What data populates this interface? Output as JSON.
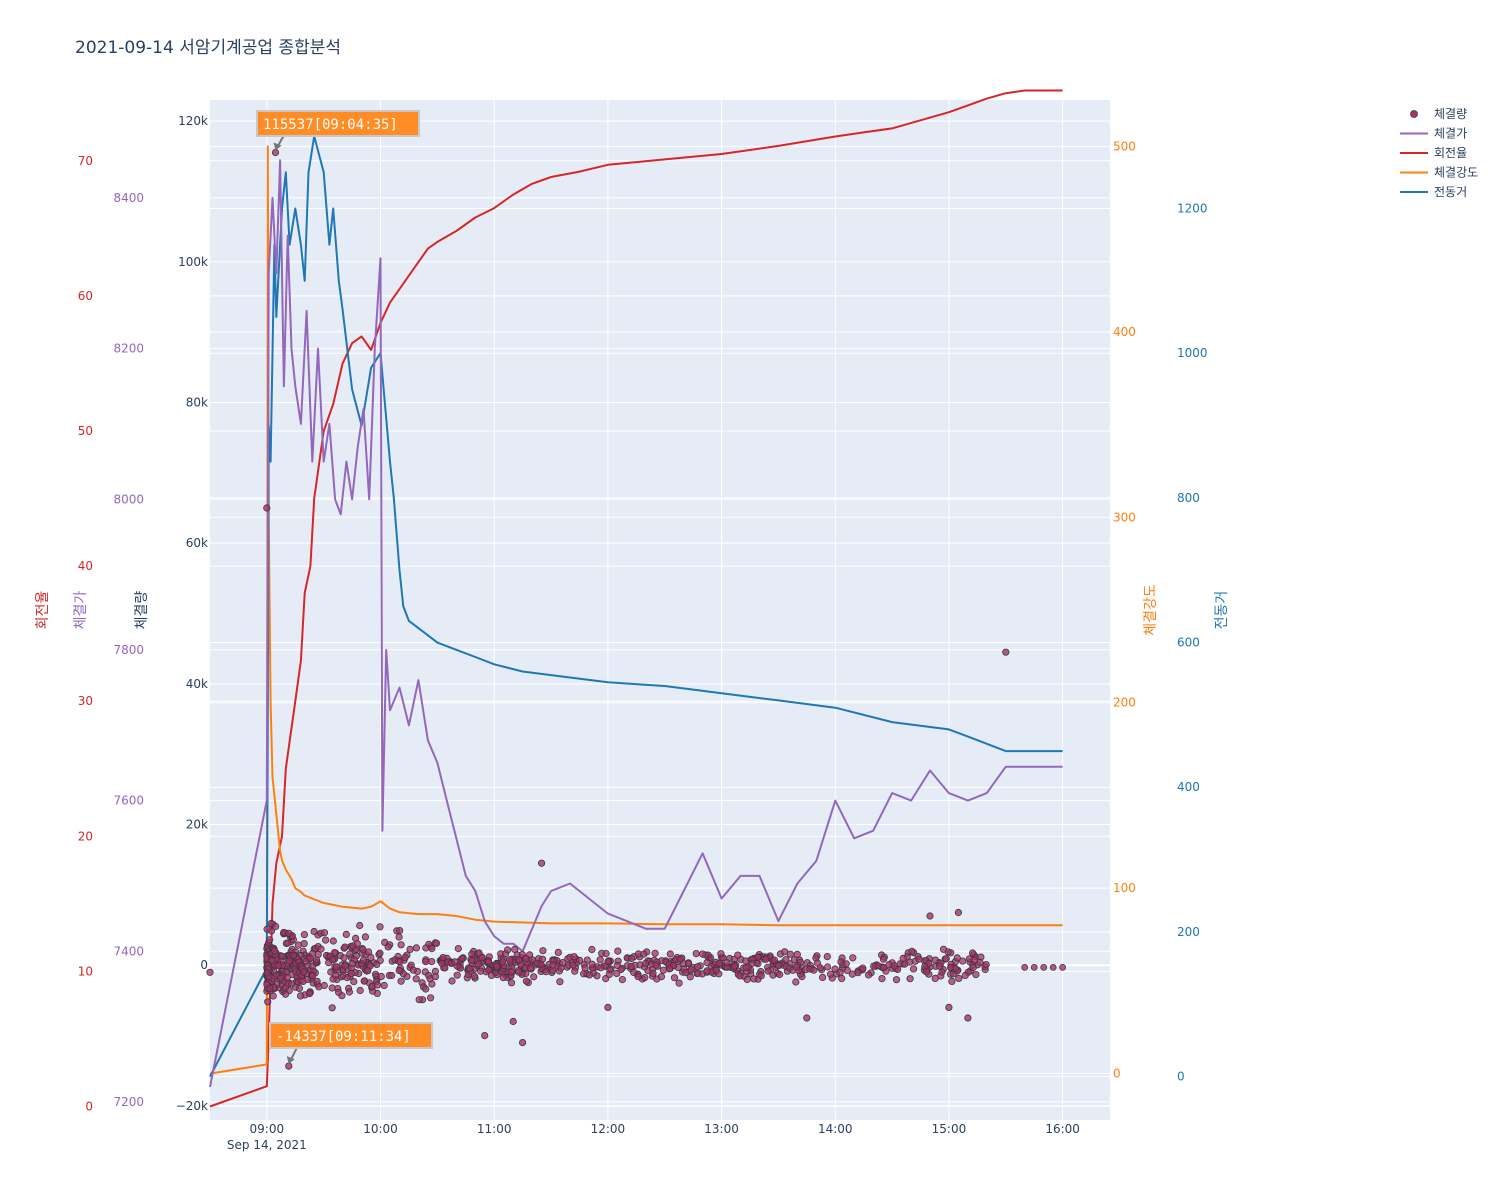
{
  "chart_data": {
    "type": "line",
    "title": "2021-09-14 서암기계공업 종합분석",
    "x_axis": {
      "type": "time",
      "range": [
        "2021-09-14 08:30",
        "2021-09-14 16:25"
      ],
      "tick_labels": [
        "09:00",
        "10:00",
        "11:00",
        "12:00",
        "13:00",
        "14:00",
        "15:00",
        "16:00"
      ],
      "date_label": "Sep 14, 2021",
      "grid": true
    },
    "y_axes": {
      "volume": {
        "label": "체결량",
        "ticks": [
          "−20k",
          "0",
          "20k",
          "40k",
          "60k",
          "80k",
          "100k",
          "120k"
        ],
        "range": [
          -22000,
          123000
        ],
        "color": "#2a3f5f"
      },
      "price": {
        "label": "체결가",
        "ticks": [
          "7200",
          "7400",
          "7600",
          "7800",
          "8000",
          "8200",
          "8400"
        ],
        "range": [
          7176,
          8530
        ],
        "color": "#9467bd"
      },
      "turnover": {
        "label": "회전율",
        "ticks": [
          "0",
          "10",
          "20",
          "30",
          "40",
          "50",
          "60",
          "70"
        ],
        "range": [
          -1,
          74.5
        ],
        "color": "#d62728"
      },
      "strength": {
        "label": "체결강도",
        "ticks": [
          "0",
          "100",
          "200",
          "300",
          "400",
          "500"
        ],
        "range": [
          -25,
          525
        ],
        "color": "#ff7f0e"
      },
      "momentum": {
        "label": "전동거",
        "ticks": [
          "0",
          "200",
          "400",
          "600",
          "800",
          "1000",
          "1200"
        ],
        "range": [
          -60,
          1350
        ],
        "color": "#1f77b4"
      }
    },
    "legend": {
      "position": "top-right",
      "entries": [
        {
          "name": "체결량",
          "kind": "marker",
          "color": "#a8306b"
        },
        {
          "name": "체결가",
          "kind": "line",
          "color": "#9467bd"
        },
        {
          "name": "회전율",
          "kind": "line",
          "color": "#d62728"
        },
        {
          "name": "체결강도",
          "kind": "line",
          "color": "#ff7f0e"
        },
        {
          "name": "전동거",
          "kind": "line",
          "color": "#1f77b4"
        }
      ]
    },
    "annotations": [
      {
        "text": "115537[09:04:35]",
        "x": "09:04:35",
        "y": 115537,
        "axis": "volume"
      },
      {
        "text": "-14337[09:11:34]",
        "x": "09:11:34",
        "y": -14337,
        "axis": "volume"
      }
    ],
    "series": [
      {
        "name": "회전율",
        "axis": "turnover",
        "color": "#d62728",
        "x": [
          "08:30",
          "09:00",
          "09:01",
          "09:02",
          "09:03",
          "09:05",
          "09:08",
          "09:10",
          "09:13",
          "09:15",
          "09:18",
          "09:20",
          "09:23",
          "09:25",
          "09:30",
          "09:35",
          "09:40",
          "09:45",
          "09:50",
          "09:55",
          "10:00",
          "10:05",
          "10:10",
          "10:15",
          "10:20",
          "10:25",
          "10:30",
          "10:40",
          "10:50",
          "11:00",
          "11:10",
          "11:20",
          "11:30",
          "11:45",
          "12:00",
          "12:30",
          "13:00",
          "13:30",
          "14:00",
          "14:15",
          "14:30",
          "14:45",
          "15:00",
          "15:10",
          "15:20",
          "15:30",
          "15:40",
          "16:00"
        ],
        "y": [
          0,
          1.5,
          5,
          10,
          15,
          18,
          20,
          25,
          28,
          30,
          33,
          38,
          40,
          45,
          50,
          52,
          55,
          56.5,
          57,
          56,
          58,
          59.5,
          60.5,
          61.5,
          62.5,
          63.5,
          64,
          64.8,
          65.8,
          66.5,
          67.5,
          68.3,
          68.8,
          69.2,
          69.7,
          70.1,
          70.5,
          71.1,
          71.8,
          72.1,
          72.4,
          73,
          73.6,
          74.1,
          74.6,
          75,
          75.2,
          75.2
        ]
      },
      {
        "name": "체결강도",
        "axis": "strength",
        "color": "#ff7f0e",
        "x": [
          "08:30",
          "09:00",
          "09:00:30",
          "09:01",
          "09:02",
          "09:03",
          "09:04",
          "09:05",
          "09:06",
          "09:07",
          "09:08",
          "09:10",
          "09:13",
          "09:15",
          "09:18",
          "09:20",
          "09:25",
          "09:30",
          "09:35",
          "09:40",
          "09:50",
          "09:55",
          "10:00",
          "10:05",
          "10:10",
          "10:20",
          "10:30",
          "10:40",
          "10:50",
          "11:00",
          "11:30",
          "12:00",
          "12:30",
          "13:00",
          "13:30",
          "14:00",
          "14:30",
          "15:00",
          "15:30",
          "16:00"
        ],
        "y": [
          0,
          5,
          500,
          300,
          200,
          160,
          150,
          140,
          130,
          120,
          115,
          110,
          105,
          100,
          98,
          96,
          94,
          92,
          91,
          90,
          89,
          90,
          93,
          89,
          87,
          86,
          86,
          85,
          83,
          82,
          81,
          81,
          80.5,
          80.5,
          80,
          80,
          80,
          80,
          80,
          80
        ]
      },
      {
        "name": "전동거",
        "axis": "momentum",
        "color": "#1f77b4",
        "x": [
          "08:30",
          "09:00",
          "09:00:30",
          "09:01",
          "09:02",
          "09:03",
          "09:04",
          "09:05",
          "09:06",
          "09:08",
          "09:10",
          "09:12",
          "09:15",
          "09:18",
          "09:20",
          "09:22",
          "09:25",
          "09:30",
          "09:33",
          "09:35",
          "09:38",
          "09:40",
          "09:45",
          "09:50",
          "09:55",
          "10:00",
          "10:05",
          "10:07",
          "10:10",
          "10:12",
          "10:15",
          "10:20",
          "10:25",
          "10:30",
          "10:40",
          "10:50",
          "11:00",
          "11:15",
          "11:30",
          "12:00",
          "12:30",
          "13:00",
          "13:30",
          "14:00",
          "14:30",
          "15:00",
          "15:10",
          "15:20",
          "15:30",
          "16:00"
        ],
        "y": [
          0,
          150,
          500,
          900,
          850,
          1000,
          1150,
          1050,
          1100,
          1200,
          1250,
          1150,
          1200,
          1150,
          1100,
          1250,
          1300,
          1250,
          1150,
          1200,
          1100,
          1060,
          950,
          900,
          980,
          1000,
          850,
          800,
          700,
          650,
          630,
          620,
          610,
          600,
          590,
          580,
          570,
          560,
          555,
          545,
          540,
          530,
          520,
          510,
          490,
          480,
          470,
          460,
          450,
          450
        ]
      },
      {
        "name": "체결가",
        "axis": "price",
        "color": "#9467bd",
        "x": [
          "08:30",
          "09:00",
          "09:01",
          "09:03",
          "09:05",
          "09:07",
          "09:09",
          "09:11",
          "09:13",
          "09:15",
          "09:18",
          "09:21",
          "09:24",
          "09:27",
          "09:30",
          "09:33",
          "09:36",
          "09:39",
          "09:42",
          "09:45",
          "09:48",
          "09:51",
          "09:54",
          "09:57",
          "10:00",
          "10:01",
          "10:03",
          "10:05",
          "10:10",
          "10:15",
          "10:20",
          "10:25",
          "10:30",
          "10:35",
          "10:40",
          "10:45",
          "10:50",
          "10:55",
          "11:00",
          "11:05",
          "11:10",
          "11:15",
          "11:20",
          "11:25",
          "11:30",
          "11:40",
          "11:50",
          "12:00",
          "12:10",
          "12:20",
          "12:30",
          "12:40",
          "12:50",
          "13:00",
          "13:10",
          "13:20",
          "13:30",
          "13:40",
          "13:50",
          "14:00",
          "14:10",
          "14:20",
          "14:30",
          "14:40",
          "14:50",
          "15:00",
          "15:10",
          "15:20",
          "15:30",
          "15:40",
          "16:00"
        ],
        "y": [
          7220,
          7600,
          8300,
          8400,
          8300,
          8450,
          8150,
          8350,
          8200,
          8150,
          8100,
          8250,
          8050,
          8200,
          8050,
          8100,
          8000,
          7980,
          8050,
          8000,
          8070,
          8120,
          8000,
          8200,
          8320,
          7560,
          7800,
          7720,
          7750,
          7700,
          7760,
          7680,
          7650,
          7600,
          7550,
          7500,
          7480,
          7440,
          7420,
          7410,
          7410,
          7400,
          7430,
          7460,
          7480,
          7490,
          7470,
          7450,
          7440,
          7430,
          7430,
          7480,
          7530,
          7470,
          7500,
          7500,
          7440,
          7490,
          7520,
          7600,
          7550,
          7560,
          7610,
          7600,
          7640,
          7610,
          7600,
          7610,
          7645,
          7645,
          7645
        ]
      }
    ],
    "scatter": {
      "name": "체결량",
      "axis": "volume",
      "color": "#a8306b",
      "time_range": [
        "09:00",
        "15:20"
      ],
      "typical_band": [
        -5000,
        5000
      ],
      "outliers": [
        {
          "x": "08:30",
          "y": -1000
        },
        {
          "x": "09:04:35",
          "y": 115537
        },
        {
          "x": "09:11:34",
          "y": -14337
        },
        {
          "x": "09:00",
          "y": 65000
        },
        {
          "x": "10:55",
          "y": -10000
        },
        {
          "x": "11:10",
          "y": -8000
        },
        {
          "x": "11:15",
          "y": -11000
        },
        {
          "x": "11:25",
          "y": 14500
        },
        {
          "x": "12:00",
          "y": -6000
        },
        {
          "x": "13:45",
          "y": -7500
        },
        {
          "x": "14:50",
          "y": 7000
        },
        {
          "x": "15:05",
          "y": 7500
        },
        {
          "x": "15:30",
          "y": 44500
        },
        {
          "x": "15:00",
          "y": -6000
        },
        {
          "x": "15:10",
          "y": -7500
        }
      ]
    }
  }
}
